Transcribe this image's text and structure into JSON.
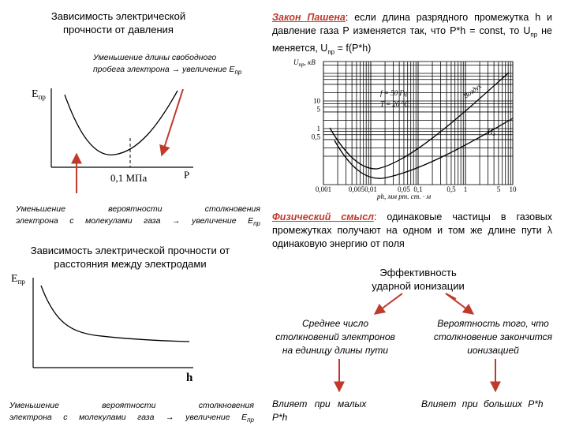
{
  "left": {
    "title1": [
      "Зависимость электрической",
      "прочности от давления"
    ],
    "note_top": [
      "Уменьшение длины свободного",
      "пробега электрона → увеличение E",
      "пр"
    ],
    "graph1": {
      "y_label": [
        "E",
        "пр"
      ],
      "x_tick": "0,1 МПа",
      "x_label": "P"
    },
    "note_mid": [
      "Уменьшение вероятности столкновения",
      "электрона с молекулами газа → увеличение E",
      "пр"
    ],
    "title2": [
      "Зависимость электрической прочности от",
      "расстояния между электродами"
    ],
    "graph2": {
      "y_label": [
        "E",
        "пр"
      ],
      "x_label": "h"
    },
    "note_bottom": [
      "Уменьшение вероятности столкновения",
      "электрона с молекулами газа → увеличение E",
      "пр"
    ]
  },
  "right": {
    "paschen": [
      "Закон Пашена",
      ": если длина разрядного промежутка h и давление газа P изменяется так, что P*h = const, то U",
      "пр",
      " не меняется, U",
      "пр",
      " = f(P*h)"
    ],
    "chart": {
      "y_label": [
        "U",
        "пр",
        ", кВ"
      ],
      "y_ticks": [
        "10",
        "5",
        "1",
        "0,5"
      ],
      "x_ticks": [
        "0,001",
        "0,005",
        "0,01",
        "0,05",
        "0,1",
        "0,5",
        "1",
        "5",
        "10"
      ],
      "x_label": "ph, мм рт. ст. · м",
      "legend": [
        "f = 50 Гц",
        "T = 20 °C"
      ],
      "curves": [
        "Воздух",
        "H₂"
      ]
    },
    "physical": [
      "Физический смысл",
      ": одинаковые частицы в газовых промежутках получают на одном и том же длине пути λ одинаковую энергию от поля"
    ],
    "root": [
      "Эффективность",
      "ударной ионизации"
    ],
    "branch_left": [
      "Среднее число",
      "столкновений электронов",
      "на единицу длины пути"
    ],
    "branch_right": [
      "Вероятность того, что",
      "столкновение закончится",
      "ионизацией"
    ],
    "effect_left": [
      "Влияет при малых",
      "P*h"
    ],
    "effect_right": "Влияет при больших P*h"
  }
}
